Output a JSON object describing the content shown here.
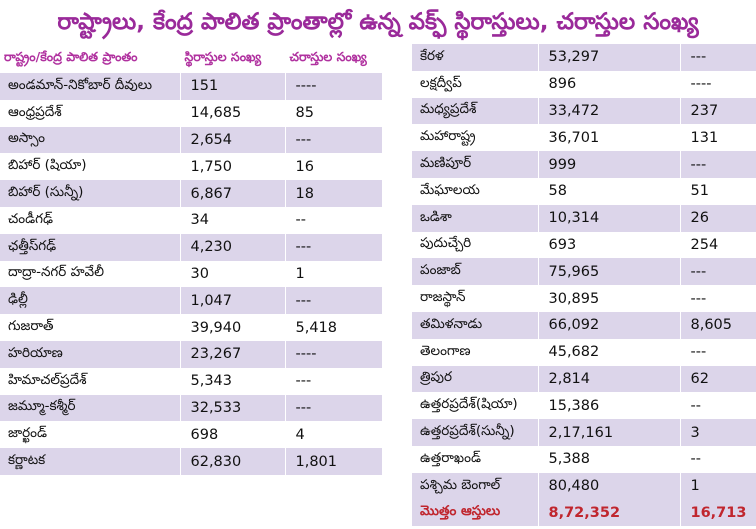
{
  "title": "రాష్ట్రాలు, కేంద్ర పాలిత ప్రాంతాల్లో ఉన్న వక్ఫ్ స్థిరాస్తులు, చరాస్తుల సంఖ్య",
  "headers": {
    "region": "రాష్ట్రం/కేంద్ర పాలిత ప్రాంతం",
    "immovable": "స్థిరాస్తుల సంఖ్య",
    "movable": "చరాస్తుల సంఖ్య"
  },
  "left_rows": [
    {
      "name": "అండమాన్-నికోబార్ దీవులు",
      "immovable": "151",
      "movable": "----"
    },
    {
      "name": "ఆంధ్రప్రదేశ్",
      "immovable": "14,685",
      "movable": "85"
    },
    {
      "name": "అస్సాం",
      "immovable": "2,654",
      "movable": "---"
    },
    {
      "name": "బిహార్ (షియా)",
      "immovable": "1,750",
      "movable": "16"
    },
    {
      "name": "బిహార్ (సున్నీ)",
      "immovable": "6,867",
      "movable": "18"
    },
    {
      "name": "చండీగఢ్",
      "immovable": "34",
      "movable": "--"
    },
    {
      "name": "ఛత్తీస్‌గఢ్",
      "immovable": "4,230",
      "movable": "---"
    },
    {
      "name": "దాద్రా-నగర్ హవేలీ",
      "immovable": "30",
      "movable": "1"
    },
    {
      "name": "ఢిల్లీ",
      "immovable": "1,047",
      "movable": "---"
    },
    {
      "name": "గుజరాత్",
      "immovable": "39,940",
      "movable": "5,418"
    },
    {
      "name": "హరియాణ",
      "immovable": "23,267",
      "movable": "----"
    },
    {
      "name": "హిమాచల్‌ప్రదేశ్",
      "immovable": "5,343",
      "movable": "---"
    },
    {
      "name": "జమ్మూ-కశ్మీర్",
      "immovable": "32,533",
      "movable": "---"
    },
    {
      "name": "జార్ఖండ్",
      "immovable": "698",
      "movable": "4"
    },
    {
      "name": "కర్ణాటక",
      "immovable": "62,830",
      "movable": "1,801"
    }
  ],
  "right_rows": [
    {
      "name": "కేరళ",
      "immovable": "53,297",
      "movable": "---"
    },
    {
      "name": "లక్షద్వీప్",
      "immovable": "896",
      "movable": "----"
    },
    {
      "name": "మధ్యప్రదేశ్",
      "immovable": "33,472",
      "movable": "237"
    },
    {
      "name": "మహారాష్ట్ర",
      "immovable": "36,701",
      "movable": "131"
    },
    {
      "name": "మణిపూర్",
      "immovable": "999",
      "movable": "---"
    },
    {
      "name": "మేఘాలయ",
      "immovable": "58",
      "movable": "51"
    },
    {
      "name": "ఒడిశా",
      "immovable": "10,314",
      "movable": "26"
    },
    {
      "name": "పుదుచ్చేరి",
      "immovable": "693",
      "movable": "254"
    },
    {
      "name": "పంజాబ్",
      "immovable": "75,965",
      "movable": "---"
    },
    {
      "name": "రాజస్థాన్",
      "immovable": "30,895",
      "movable": "---"
    },
    {
      "name": "తమిళనాడు",
      "immovable": "66,092",
      "movable": "8,605"
    },
    {
      "name": "తెలంగాణ",
      "immovable": "45,682",
      "movable": "---"
    },
    {
      "name": "త్రిపుర",
      "immovable": "2,814",
      "movable": "62"
    },
    {
      "name": "ఉత్తరప్రదేశ్(షియా)",
      "immovable": "15,386",
      "movable": "--"
    },
    {
      "name": "ఉత్తరప్రదేశ్(సున్నీ)",
      "immovable": "2,17,161",
      "movable": "3"
    },
    {
      "name": "ఉత్తరాఖండ్",
      "immovable": "5,388",
      "movable": "--"
    },
    {
      "name": "పశ్చిమ బెంగాల్",
      "immovable": "80,480",
      "movable": "1"
    }
  ],
  "total": {
    "label": "మొత్తం ఆస్తులు",
    "immovable": "8,72,352",
    "movable": "16,713"
  },
  "colors": {
    "title": "#9a2a9a",
    "header": "#b0319f",
    "stripe": "#dcd5ea",
    "total": "#c0262e"
  }
}
